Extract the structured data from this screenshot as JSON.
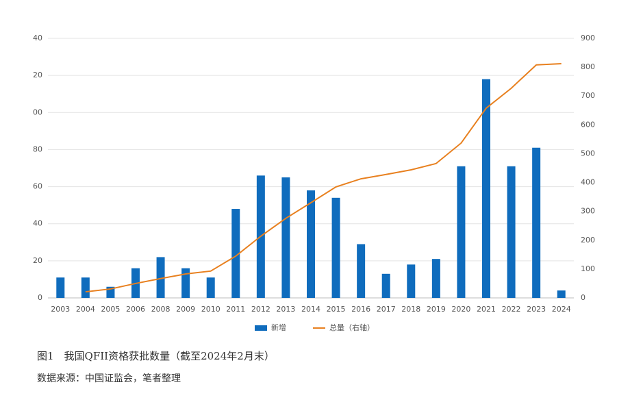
{
  "chart_data": {
    "type": "bar",
    "categories": [
      "2003",
      "2004",
      "2005",
      "2006",
      "2008",
      "2009",
      "2010",
      "2011",
      "2012",
      "2013",
      "2014",
      "2015",
      "2016",
      "2017",
      "2018",
      "2019",
      "2020",
      "2021",
      "2022",
      "2023",
      "2024"
    ],
    "series": [
      {
        "name": "新增",
        "type": "bar",
        "color": "#0f6cbd",
        "values": [
          11,
          11,
          6,
          16,
          22,
          16,
          11,
          48,
          66,
          65,
          58,
          54,
          29,
          13,
          18,
          21,
          71,
          118,
          71,
          81,
          4
        ]
      },
      {
        "name": "总量（右轴）",
        "type": "line",
        "axis": "y2",
        "color": "#e8801f",
        "values": [
          null,
          21,
          31,
          50,
          67,
          83,
          93,
          145,
          214,
          276,
          330,
          385,
          413,
          428,
          444,
          466,
          537,
          658,
          727,
          808,
          812
        ]
      }
    ],
    "ylim": [
      0,
      140
    ],
    "yticks": [
      0,
      20,
      40,
      60,
      80,
      {
        "value": 100,
        "label": "00"
      },
      {
        "value": 120,
        "label": "20"
      },
      {
        "value": 140,
        "label": "40"
      }
    ],
    "y2lim": [
      0,
      900
    ],
    "y2ticks": [
      0,
      100,
      200,
      300,
      400,
      500,
      600,
      700,
      800,
      900
    ],
    "grid": true,
    "legend": "bottom",
    "caption": "图1　我国QFII资格获批数量（截至2024年2月末）",
    "source": "数据来源：中国证监会，笔者整理"
  }
}
